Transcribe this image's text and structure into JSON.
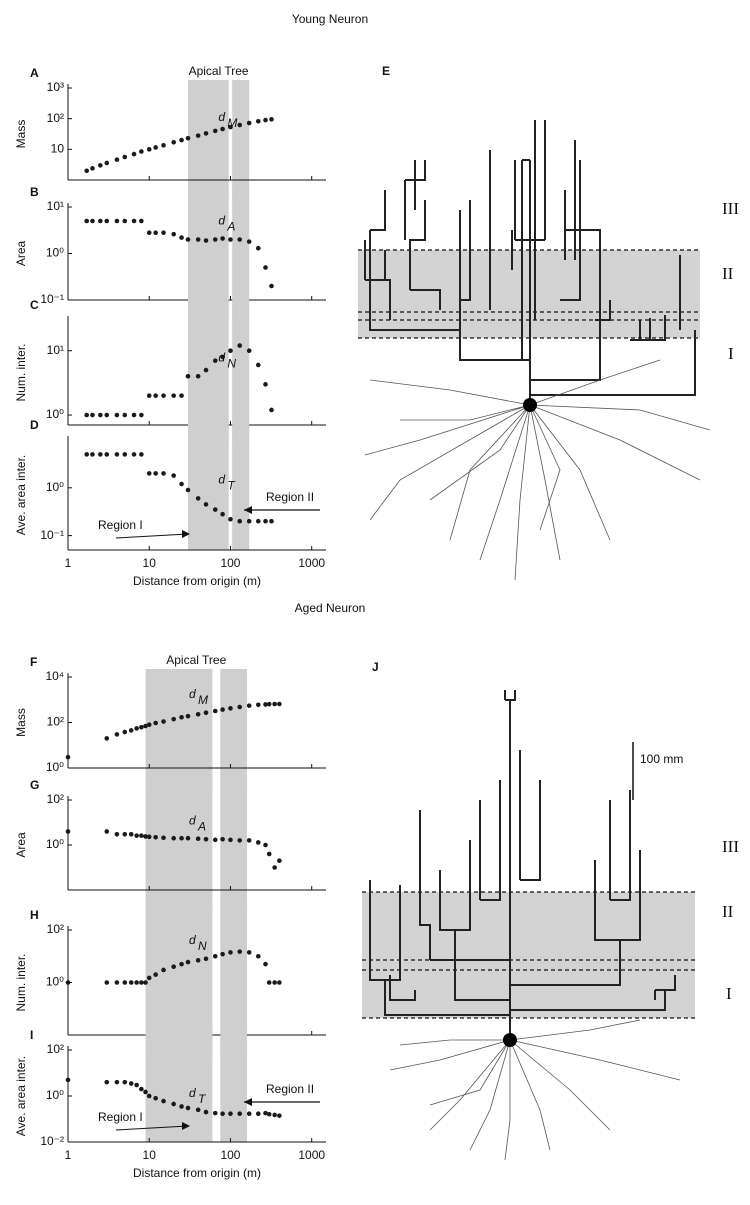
{
  "chart_data": [
    {
      "type": "scatter",
      "title": "Young Neuron",
      "subtitle": "Apical Tree",
      "panel_label": "A",
      "ylabel": "Mass",
      "xlog": true,
      "ylog": true,
      "color": "#1a1a1a",
      "x": [
        1.7,
        2,
        2.5,
        3,
        4,
        5,
        6.5,
        8,
        10,
        12,
        15,
        20,
        25,
        30,
        40,
        50,
        65,
        80,
        100,
        130,
        170,
        220,
        270,
        320
      ],
      "values": [
        2,
        2.4,
        3,
        3.6,
        4.6,
        5.6,
        7,
        8.5,
        10,
        11.5,
        13.5,
        17,
        20,
        23,
        28,
        33,
        40,
        46,
        53,
        62,
        72,
        82,
        90,
        95
      ],
      "xlim": [
        1,
        1500
      ],
      "ylim": [
        1,
        1000
      ],
      "xticks": [
        1,
        10,
        100,
        1000
      ],
      "yticks": [
        10,
        {
          "value": 100,
          "label": "10²"
        },
        {
          "value": 1000,
          "label": "10³"
        }
      ],
      "bands": [
        [
          30,
          95
        ],
        [
          105,
          170
        ]
      ],
      "annotation": {
        "base": "d",
        "sub": "M"
      }
    },
    {
      "type": "scatter",
      "panel_label": "B",
      "ylabel": "Area",
      "xlog": true,
      "ylog": true,
      "color": "#1a1a1a",
      "x": [
        1.7,
        2,
        2.5,
        3,
        4,
        5,
        6.5,
        8,
        10,
        12,
        15,
        20,
        25,
        30,
        40,
        50,
        65,
        80,
        100,
        130,
        170,
        220,
        270,
        320
      ],
      "values": [
        5,
        5,
        5,
        5,
        5,
        5,
        5,
        5,
        2.8,
        2.8,
        2.8,
        2.6,
        2.2,
        2,
        2,
        1.9,
        2,
        2.1,
        2,
        2,
        1.8,
        1.3,
        0.5,
        0.2
      ],
      "xlim": [
        1,
        1500
      ],
      "ylim": [
        0.1,
        10
      ],
      "xticks": [
        1,
        10,
        100,
        1000
      ],
      "yticks": [
        {
          "value": 0.1,
          "label": "10⁻¹"
        },
        {
          "value": 1,
          "label": "10⁰"
        },
        {
          "value": 10,
          "label": "10¹"
        }
      ],
      "bands": [
        [
          30,
          95
        ],
        [
          105,
          170
        ]
      ],
      "annotation": {
        "base": "d",
        "sub": "A"
      }
    },
    {
      "type": "scatter",
      "panel_label": "C",
      "ylabel": "Num. inter.",
      "xlog": true,
      "ylog": true,
      "color": "#1a1a1a",
      "x": [
        1.7,
        2,
        2.5,
        3,
        4,
        5,
        6.5,
        8,
        10,
        12,
        15,
        20,
        25,
        30,
        40,
        50,
        65,
        80,
        100,
        130,
        170,
        220,
        270,
        320
      ],
      "values": [
        1,
        1,
        1,
        1,
        1,
        1,
        1,
        1,
        2,
        2,
        2,
        2,
        2,
        4,
        4,
        5,
        7,
        8,
        10,
        12,
        10,
        6,
        3,
        1.2
      ],
      "xlim": [
        1,
        1500
      ],
      "ylim": [
        0.7,
        30
      ],
      "xticks": [
        1,
        10,
        100,
        1000
      ],
      "yticks": [
        {
          "value": 1,
          "label": "10⁰"
        },
        {
          "value": 10,
          "label": "10¹"
        }
      ],
      "bands": [
        [
          30,
          95
        ],
        [
          105,
          170
        ]
      ],
      "annotation": {
        "base": "d",
        "sub": "N"
      }
    },
    {
      "type": "scatter",
      "panel_label": "D",
      "ylabel": "Ave. area inter.",
      "xlabel": "Distance from origin (m)",
      "xlog": true,
      "ylog": true,
      "color": "#1a1a1a",
      "x": [
        1.7,
        2,
        2.5,
        3,
        4,
        5,
        6.5,
        8,
        10,
        12,
        15,
        20,
        25,
        30,
        40,
        50,
        65,
        80,
        100,
        130,
        170,
        220,
        270,
        320
      ],
      "values": [
        5,
        5,
        5,
        5,
        5,
        5,
        5,
        5,
        2,
        2,
        2,
        1.8,
        1.2,
        0.9,
        0.6,
        0.45,
        0.35,
        0.28,
        0.22,
        0.2,
        0.2,
        0.2,
        0.2,
        0.2
      ],
      "xlim": [
        1,
        1500
      ],
      "ylim": [
        0.05,
        10
      ],
      "xticks": [
        1,
        10,
        100,
        1000
      ],
      "yticks": [
        {
          "value": 0.1,
          "label": "10⁻¹"
        },
        {
          "value": 1,
          "label": "10⁰"
        }
      ],
      "bands": [
        [
          30,
          95
        ],
        [
          105,
          170
        ]
      ],
      "annotation": {
        "base": "d",
        "sub": "T"
      },
      "regions": [
        "Region I",
        "Region II"
      ]
    },
    {
      "type": "scatter",
      "title": "Aged Neuron",
      "subtitle": "Apical Tree",
      "panel_label": "F",
      "ylabel": "Mass",
      "xlog": true,
      "ylog": true,
      "color": "#1a1a1a",
      "x": [
        1,
        3,
        4,
        5,
        6,
        7,
        8,
        9,
        10,
        12,
        15,
        20,
        25,
        30,
        40,
        50,
        65,
        80,
        100,
        130,
        170,
        220,
        270,
        300,
        350,
        400
      ],
      "values": [
        3,
        20,
        30,
        38,
        45,
        55,
        62,
        70,
        80,
        95,
        110,
        140,
        170,
        190,
        230,
        270,
        320,
        370,
        420,
        480,
        550,
        600,
        620,
        640,
        650,
        650
      ],
      "xlim": [
        1,
        1500
      ],
      "ylim": [
        1,
        10000
      ],
      "xticks": [
        1,
        10,
        100,
        1000
      ],
      "yticks": [
        {
          "value": 1,
          "label": "10⁰"
        },
        {
          "value": 100,
          "label": "10²"
        },
        {
          "value": 10000,
          "label": "10⁴"
        }
      ],
      "bands": [
        [
          9,
          60
        ],
        [
          75,
          160
        ]
      ],
      "annotation": {
        "base": "d",
        "sub": "M"
      }
    },
    {
      "type": "scatter",
      "panel_label": "G",
      "ylabel": "Area",
      "xlog": true,
      "ylog": true,
      "color": "#1a1a1a",
      "x": [
        1,
        3,
        4,
        5,
        6,
        7,
        8,
        9,
        10,
        12,
        15,
        20,
        25,
        30,
        40,
        50,
        65,
        80,
        100,
        130,
        170,
        220,
        270,
        300,
        350,
        400
      ],
      "values": [
        4,
        4,
        3,
        3,
        3,
        2.6,
        2.6,
        2.4,
        2.3,
        2.2,
        2.1,
        2,
        2,
        2,
        1.9,
        1.8,
        1.7,
        1.8,
        1.7,
        1.6,
        1.6,
        1.3,
        1,
        0.4,
        0.1,
        0.2
      ],
      "xlim": [
        1,
        1500
      ],
      "ylim": [
        0.01,
        100
      ],
      "xticks": [
        1,
        10,
        100,
        1000
      ],
      "yticks": [
        {
          "value": 1,
          "label": "10⁰"
        },
        {
          "value": 100,
          "label": "10²"
        }
      ],
      "bands": [
        [
          9,
          60
        ],
        [
          75,
          160
        ]
      ],
      "annotation": {
        "base": "d",
        "sub": "A"
      }
    },
    {
      "type": "scatter",
      "panel_label": "H",
      "ylabel": "Num. inter.",
      "xlog": true,
      "ylog": true,
      "color": "#1a1a1a",
      "x": [
        1,
        3,
        4,
        5,
        6,
        7,
        8,
        9,
        10,
        12,
        15,
        20,
        25,
        30,
        40,
        50,
        65,
        80,
        100,
        130,
        170,
        220,
        270,
        300,
        350,
        400
      ],
      "values": [
        1,
        1,
        1,
        1,
        1,
        1,
        1,
        1,
        1.5,
        2,
        3,
        4,
        5,
        6,
        7,
        8,
        10,
        12,
        14,
        15,
        14,
        10,
        5,
        1,
        1,
        1
      ],
      "xlim": [
        1,
        1500
      ],
      "ylim": [
        0.01,
        100
      ],
      "xticks": [
        1,
        10,
        100,
        1000
      ],
      "yticks": [
        {
          "value": 1,
          "label": "10⁰"
        },
        {
          "value": 100,
          "label": "10²"
        }
      ],
      "bands": [
        [
          9,
          60
        ],
        [
          75,
          160
        ]
      ],
      "annotation": {
        "base": "d",
        "sub": "N"
      }
    },
    {
      "type": "scatter",
      "panel_label": "I",
      "ylabel": "Ave. area inter.",
      "xlabel": "Distance from origin (m)",
      "xlog": true,
      "ylog": true,
      "color": "#1a1a1a",
      "x": [
        1,
        3,
        4,
        5,
        6,
        7,
        8,
        9,
        10,
        12,
        15,
        20,
        25,
        30,
        40,
        50,
        65,
        80,
        100,
        130,
        170,
        220,
        270,
        300,
        350,
        400
      ],
      "values": [
        5,
        4,
        4,
        4,
        3.5,
        3,
        2,
        1.5,
        1,
        0.8,
        0.6,
        0.45,
        0.35,
        0.3,
        0.25,
        0.2,
        0.18,
        0.17,
        0.17,
        0.17,
        0.17,
        0.17,
        0.18,
        0.16,
        0.15,
        0.14
      ],
      "xlim": [
        1,
        1500
      ],
      "ylim": [
        0.01,
        100
      ],
      "xticks": [
        1,
        10,
        100,
        1000
      ],
      "yticks": [
        {
          "value": 0.01,
          "label": "10⁻²"
        },
        {
          "value": 1,
          "label": "10⁰"
        },
        {
          "value": 100,
          "label": "10²"
        }
      ],
      "bands": [
        [
          9,
          60
        ],
        [
          75,
          160
        ]
      ],
      "annotation": {
        "base": "d",
        "sub": "T"
      },
      "regions": [
        "Region I",
        "Region II"
      ]
    }
  ],
  "neuron_panels": [
    {
      "label": "E",
      "regions": [
        "III",
        "II",
        "I"
      ]
    },
    {
      "label": "J",
      "regions": [
        "III",
        "II",
        "I"
      ],
      "scale_bar": "100 mm"
    }
  ]
}
